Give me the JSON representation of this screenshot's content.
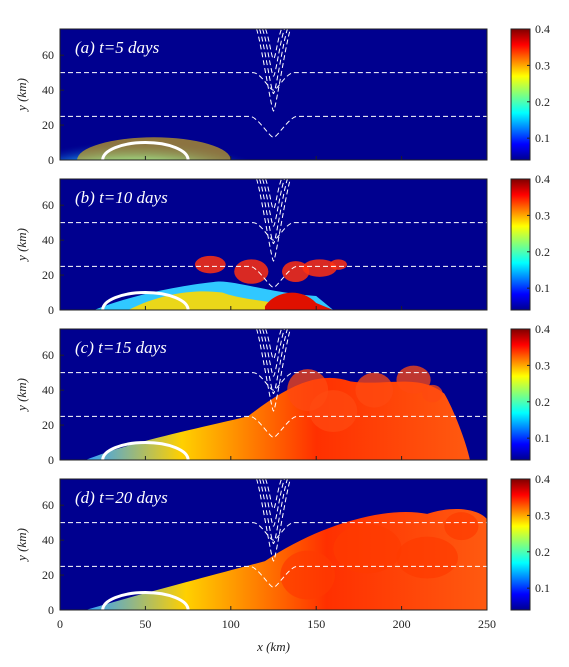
{
  "chart_data": {
    "type": "heatmap",
    "description_panels": [
      {
        "label": "(a) t=5 days"
      },
      {
        "label": "(b) t=10 days"
      },
      {
        "label": "(c) t=15 days"
      },
      {
        "label": "(d) t=20 days"
      }
    ],
    "xlabel": "x (km)",
    "ylabel": "y (km)",
    "xlim": [
      0,
      250
    ],
    "ylim": [
      0,
      75
    ],
    "xticks": [
      0,
      50,
      100,
      150,
      200,
      250
    ],
    "yticks": [
      0,
      20,
      40,
      60
    ],
    "colorbar": {
      "range": [
        0.04,
        0.4
      ],
      "ticks": [
        0.1,
        0.2,
        0.3,
        0.4
      ],
      "colormap": "jet"
    },
    "contours": {
      "style": "dashed white",
      "levels_y_km": [
        50,
        25
      ],
      "notch_center_x_km": 125
    },
    "source_ellipse": {
      "center_x_km": 50,
      "half_width_km": 25,
      "height_km": 10
    }
  }
}
